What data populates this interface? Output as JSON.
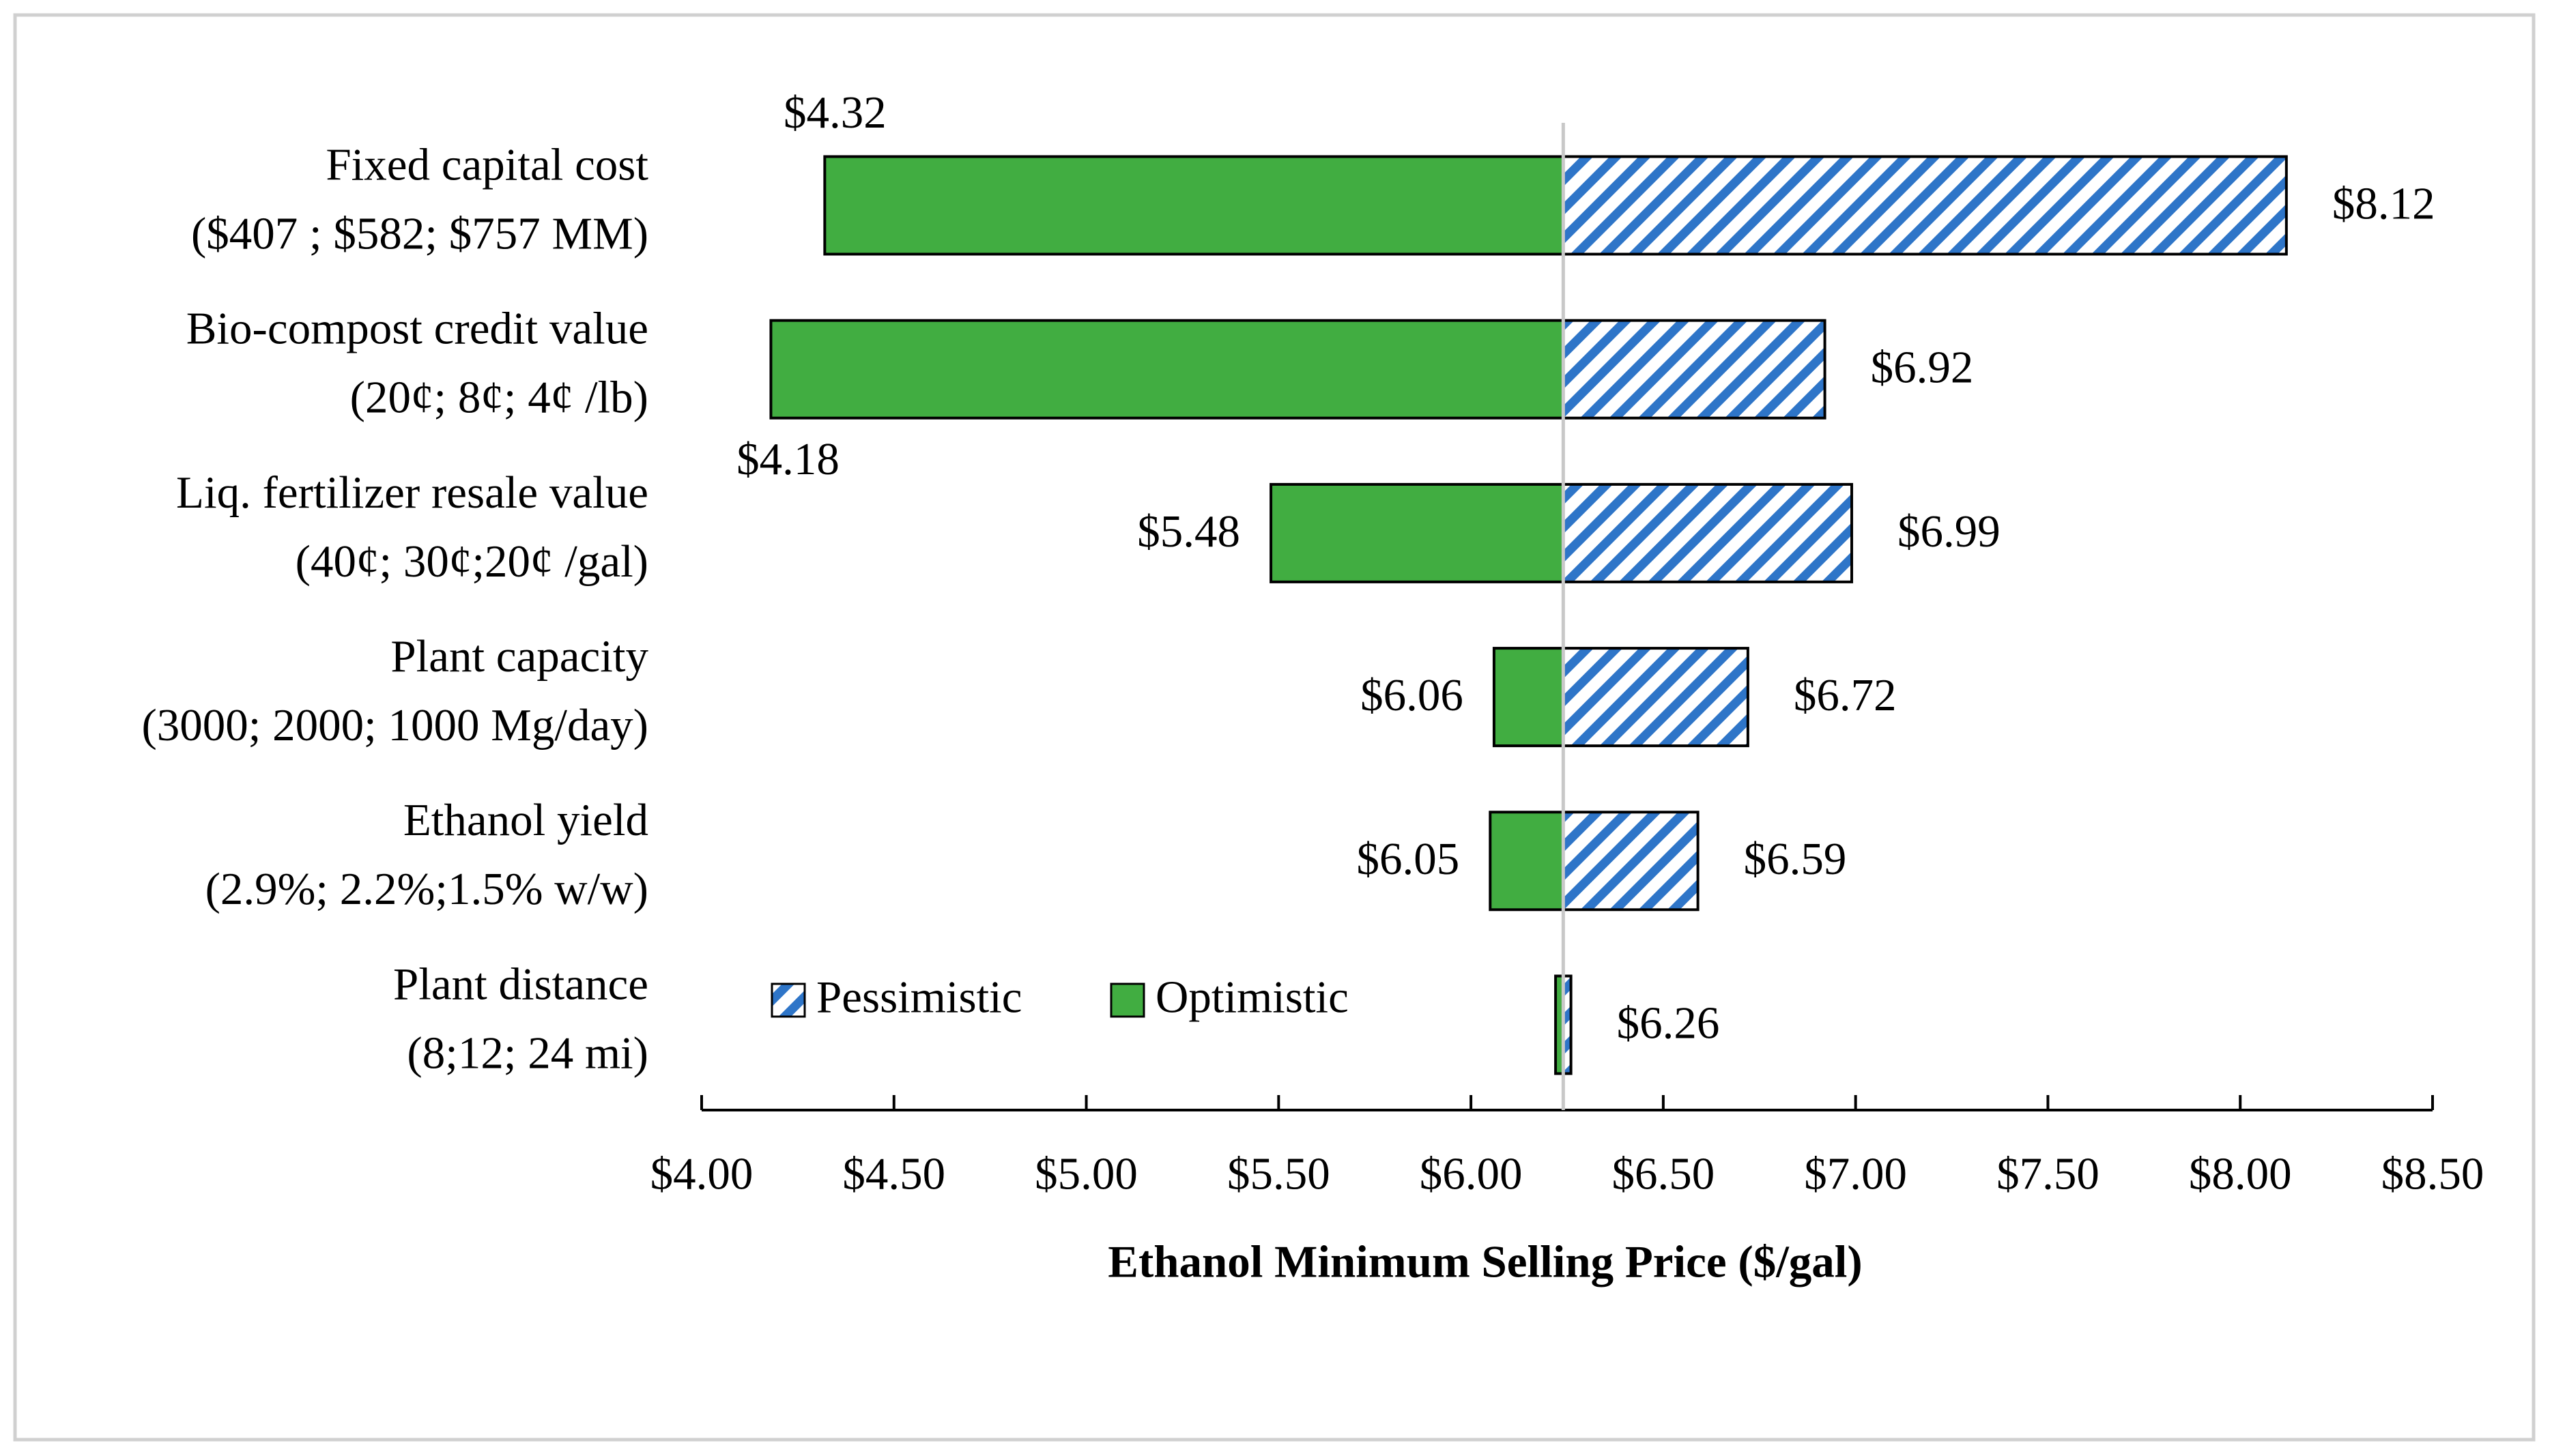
{
  "chart_data": {
    "type": "tornado",
    "categories": [
      [
        "Fixed capital cost",
        "($407 ; $582; $757 MM)"
      ],
      [
        "Bio-compost credit value",
        "(20¢; 8¢; 4¢ /lb)"
      ],
      [
        "Liq. fertilizer resale value",
        "(40¢; 30¢;20¢ /gal)"
      ],
      [
        "Plant capacity",
        "(3000; 2000; 1000 Mg/day)"
      ],
      [
        "Ethanol yield",
        "(2.9%; 2.2%;1.5% w/w)"
      ],
      [
        "Plant distance",
        "(8;12; 24 mi)"
      ]
    ],
    "base": 6.24,
    "series": [
      {
        "name": "Pessimistic",
        "color": "#2e75c8",
        "values": [
          8.12,
          6.92,
          6.99,
          6.72,
          6.59,
          6.26
        ],
        "value_labels": [
          "$8.12",
          "$6.92",
          "$6.99",
          "$6.72",
          "$6.59",
          "$6.26"
        ]
      },
      {
        "name": "Optimistic",
        "color": "#41ad41",
        "values": [
          4.32,
          4.18,
          5.48,
          6.06,
          6.05,
          6.22
        ],
        "value_labels": [
          "$4.32",
          "$4.18",
          "$5.48",
          "$6.06",
          "$6.05",
          null
        ]
      }
    ],
    "xlabel": "Ethanol Minimum Selling Price ($/gal)",
    "xlim": [
      4,
      8.5
    ],
    "xticks": [
      {
        "value": 4,
        "label": "$4.00"
      },
      {
        "value": 4.5,
        "label": "$4.50"
      },
      {
        "value": 5,
        "label": "$5.00"
      },
      {
        "value": 5.5,
        "label": "$5.50"
      },
      {
        "value": 6,
        "label": "$6.00"
      },
      {
        "value": 6.5,
        "label": "$6.50"
      },
      {
        "value": 7,
        "label": "$7.00"
      },
      {
        "value": 7.5,
        "label": "$7.50"
      },
      {
        "value": 8,
        "label": "$8.00"
      },
      {
        "value": 8.5,
        "label": "$8.50"
      }
    ],
    "legend": true
  }
}
